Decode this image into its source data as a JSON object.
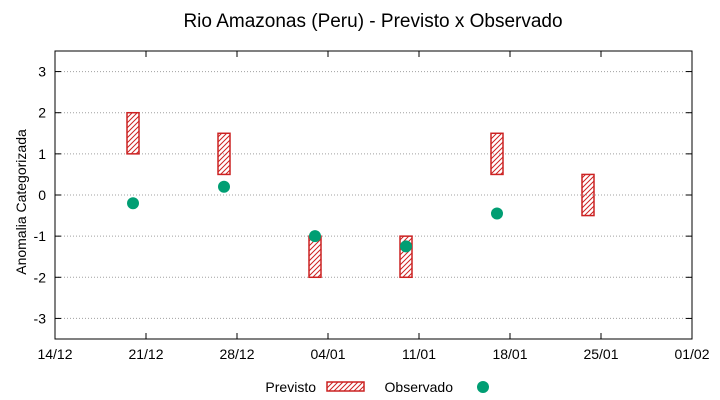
{
  "chart_data": {
    "type": "range-bar-scatter",
    "title": "Rio Amazonas (Peru) - Previsto x Observado",
    "xlabel": "",
    "ylabel": "Anomalia Categorizada",
    "xlim": [
      0,
      49
    ],
    "ylim": [
      -3.5,
      3.5
    ],
    "x_ticks": [
      {
        "x": 0,
        "label": "14/12"
      },
      {
        "x": 7,
        "label": "21/12"
      },
      {
        "x": 14,
        "label": "28/12"
      },
      {
        "x": 21,
        "label": "04/01"
      },
      {
        "x": 28,
        "label": "11/01"
      },
      {
        "x": 35,
        "label": "18/01"
      },
      {
        "x": 42,
        "label": "25/01"
      },
      {
        "x": 49,
        "label": "01/02"
      }
    ],
    "y_ticks": [
      3,
      2,
      1,
      0,
      -1,
      -2,
      -3
    ],
    "grid": true,
    "legend": [
      "Previsto",
      "Observado"
    ],
    "series": [
      {
        "name": "Previsto",
        "style": "hatched-range-box",
        "color": "#cc2222",
        "points": [
          {
            "x": 6,
            "low": 1,
            "high": 2
          },
          {
            "x": 13,
            "low": 0.5,
            "high": 1.5
          },
          {
            "x": 20,
            "low": -2,
            "high": -1
          },
          {
            "x": 27,
            "low": -2,
            "high": -1
          },
          {
            "x": 34,
            "low": 0.5,
            "high": 1.5
          },
          {
            "x": 41,
            "low": -0.5,
            "high": 0.5
          }
        ]
      },
      {
        "name": "Observado",
        "style": "marker",
        "color": "#009e73",
        "points": [
          {
            "x": 6,
            "y": -0.2
          },
          {
            "x": 13,
            "y": 0.2
          },
          {
            "x": 20,
            "y": -1.0
          },
          {
            "x": 27,
            "y": -1.25
          },
          {
            "x": 34,
            "y": -0.45
          }
        ]
      }
    ]
  }
}
